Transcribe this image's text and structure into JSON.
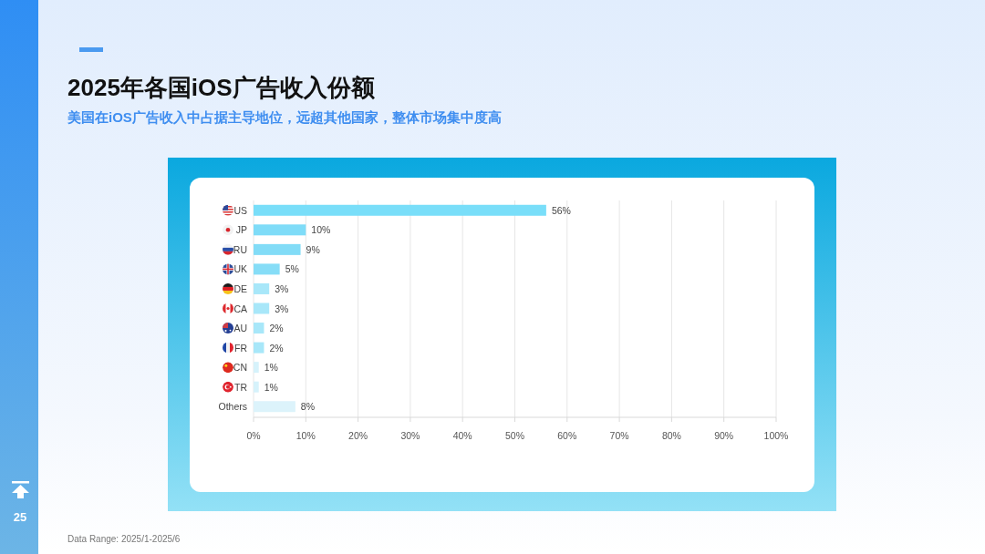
{
  "chart_data": {
    "type": "bar",
    "orientation": "horizontal",
    "title": "2025年各国iOS广告收入份额",
    "subtitle": "美国在iOS广告收入中占据主导地位，远超其他国家，整体市场集中度高",
    "categories": [
      "US",
      "JP",
      "RU",
      "UK",
      "DE",
      "CA",
      "AU",
      "FR",
      "CN",
      "TR",
      "Others"
    ],
    "values": [
      56,
      10,
      9,
      5,
      3,
      3,
      2,
      2,
      1,
      1,
      8
    ],
    "colors": [
      "#79def9",
      "#7fdcf8",
      "#82dcf7",
      "#86ddf7",
      "#a8e7f9",
      "#a8e7f9",
      "#a8e7f9",
      "#a8e7f9",
      "#d6f2fb",
      "#d6f2fb",
      "#dcf3fb"
    ],
    "value_labels": [
      "56%",
      "10%",
      "9%",
      "5%",
      "3%",
      "3%",
      "2%",
      "2%",
      "1%",
      "1%",
      "8%"
    ],
    "xlim": [
      0,
      100
    ],
    "xticks": [
      {
        "value": 0,
        "label": "0%"
      },
      {
        "value": 10,
        "label": "10%"
      },
      {
        "value": 20,
        "label": "20%"
      },
      {
        "value": 30,
        "label": "30%"
      },
      {
        "value": 40,
        "label": "40%"
      },
      {
        "value": 50,
        "label": "50%"
      },
      {
        "value": 60,
        "label": "60%"
      },
      {
        "value": 70,
        "label": "70%"
      },
      {
        "value": 80,
        "label": "80%"
      },
      {
        "value": 90,
        "label": "90%"
      },
      {
        "value": 100,
        "label": "100%"
      }
    ],
    "grid": "x",
    "annotations": [
      "Data Range: 2025/1-2025/6",
      "25"
    ]
  }
}
